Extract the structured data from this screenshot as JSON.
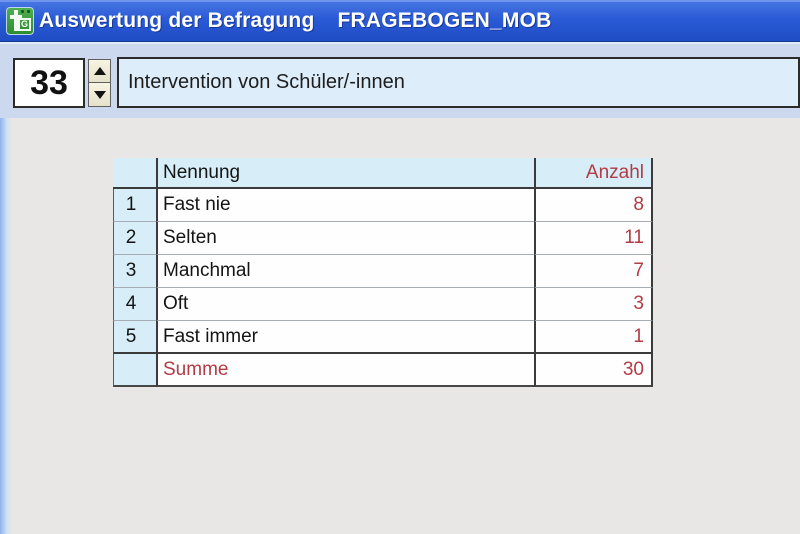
{
  "titlebar": {
    "title": "Auswertung der Befragung",
    "subtitle": "FRAGEBOGEN_MOB",
    "icon_letter": "G"
  },
  "toolbar": {
    "question_number": "33",
    "question_text": "Intervention von Schüler/-innen"
  },
  "table": {
    "header": {
      "name": "Nennung",
      "count": "Anzahl"
    },
    "rows": [
      {
        "num": "1",
        "name": "Fast nie",
        "count": "8"
      },
      {
        "num": "2",
        "name": "Selten",
        "count": "11"
      },
      {
        "num": "3",
        "name": "Manchmal",
        "count": "7"
      },
      {
        "num": "4",
        "name": "Oft",
        "count": "3"
      },
      {
        "num": "5",
        "name": "Fast immer",
        "count": "1"
      }
    ],
    "summary": {
      "label": "Summe",
      "total": "30"
    }
  },
  "colors": {
    "titlebar_blue": "#2a5ad6",
    "toolbar_band": "#cbd8ee",
    "field_blue": "#ddeefa",
    "table_header_blue": "#d7edf7",
    "value_red": "#b23b45",
    "icon_green": "#2e8d2e"
  }
}
